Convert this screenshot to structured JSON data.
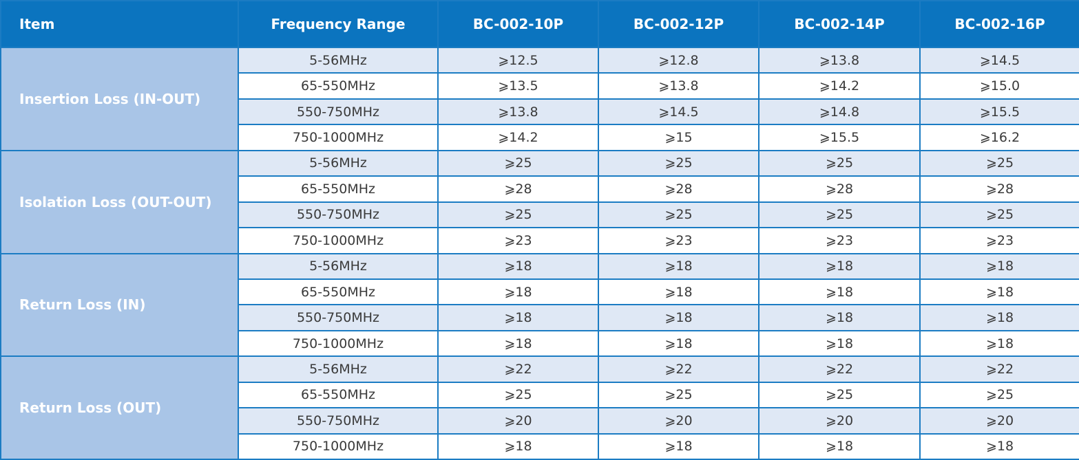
{
  "header": [
    "Item",
    "Frequency Range",
    "BC-002-10P",
    "BC-002-12P",
    "BC-002-14P",
    "BC-002-16P"
  ],
  "groups": [
    {
      "item": "Insertion Loss (IN-OUT)",
      "rows": [
        [
          "5-56MHz",
          "⩾12.5",
          "⩾12.8",
          "⩾13.8",
          "⩾14.5"
        ],
        [
          "65-550MHz",
          "⩾13.5",
          "⩾13.8",
          "⩾14.2",
          "⩾15.0"
        ],
        [
          "550-750MHz",
          "⩾13.8",
          "⩾14.5",
          "⩾14.8",
          "⩾15.5"
        ],
        [
          "750-1000MHz",
          "⩾14.2",
          "⩾15",
          "⩾15.5",
          "⩾16.2"
        ]
      ]
    },
    {
      "item": "Isolation Loss (OUT-OUT)",
      "rows": [
        [
          "5-56MHz",
          "⩾25",
          "⩾25",
          "⩾25",
          "⩾25"
        ],
        [
          "65-550MHz",
          "⩾28",
          "⩾28",
          "⩾28",
          "⩾28"
        ],
        [
          "550-750MHz",
          "⩾25",
          "⩾25",
          "⩾25",
          "⩾25"
        ],
        [
          "750-1000MHz",
          "⩾23",
          "⩾23",
          "⩾23",
          "⩾23"
        ]
      ]
    },
    {
      "item": "Return Loss (IN)",
      "rows": [
        [
          "5-56MHz",
          "⩾18",
          "⩾18",
          "⩾18",
          "⩾18"
        ],
        [
          "65-550MHz",
          "⩾18",
          "⩾18",
          "⩾18",
          "⩾18"
        ],
        [
          "550-750MHz",
          "⩾18",
          "⩾18",
          "⩾18",
          "⩾18"
        ],
        [
          "750-1000MHz",
          "⩾18",
          "⩾18",
          "⩾18",
          "⩾18"
        ]
      ]
    },
    {
      "item": "Return Loss (OUT)",
      "rows": [
        [
          "5-56MHz",
          "⩾22",
          "⩾22",
          "⩾22",
          "⩾22"
        ],
        [
          "65-550MHz",
          "⩾25",
          "⩾25",
          "⩾25",
          "⩾25"
        ],
        [
          "550-750MHz",
          "⩾20",
          "⩾20",
          "⩾20",
          "⩾20"
        ],
        [
          "750-1000MHz",
          "⩾18",
          "⩾18",
          "⩾18",
          "⩾18"
        ]
      ]
    }
  ]
}
